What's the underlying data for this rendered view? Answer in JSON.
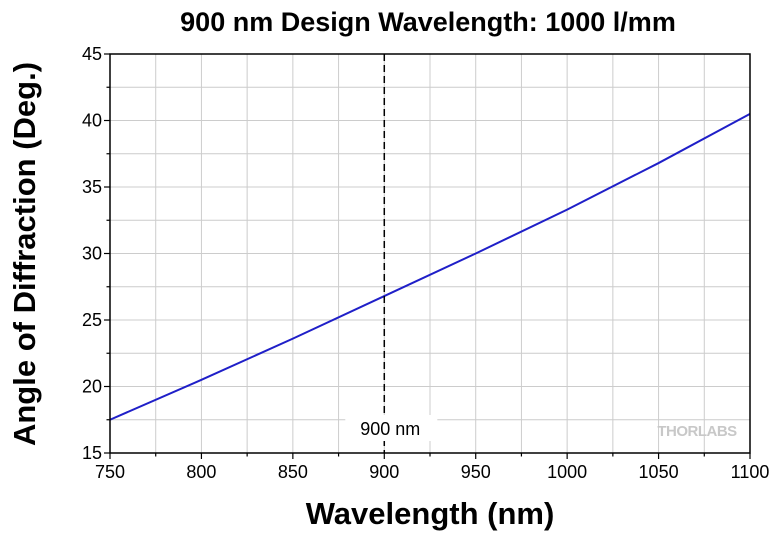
{
  "chart_data": {
    "type": "line",
    "title": "900 nm Design Wavelength: 1000 l/mm",
    "xlabel": "Wavelength (nm)",
    "ylabel": "Angle of Diffraction (Deg.)",
    "xlim": [
      750,
      1100
    ],
    "ylim": [
      15,
      45
    ],
    "xticks": [
      750,
      800,
      850,
      900,
      950,
      1000,
      1050,
      1100
    ],
    "yticks": [
      15,
      20,
      25,
      30,
      35,
      40,
      45
    ],
    "grid": true,
    "series": [
      {
        "color": "#1f1fc8",
        "x": [
          750,
          800,
          850,
          900,
          950,
          1000,
          1050,
          1100
        ],
        "y": [
          17.5,
          20.5,
          23.6,
          26.8,
          30.0,
          33.3,
          36.8,
          40.5
        ]
      }
    ],
    "annotations": [
      {
        "type": "vline",
        "x": 900,
        "style": "dashed",
        "label": "900 nm"
      }
    ],
    "watermark": "THORLABS"
  }
}
